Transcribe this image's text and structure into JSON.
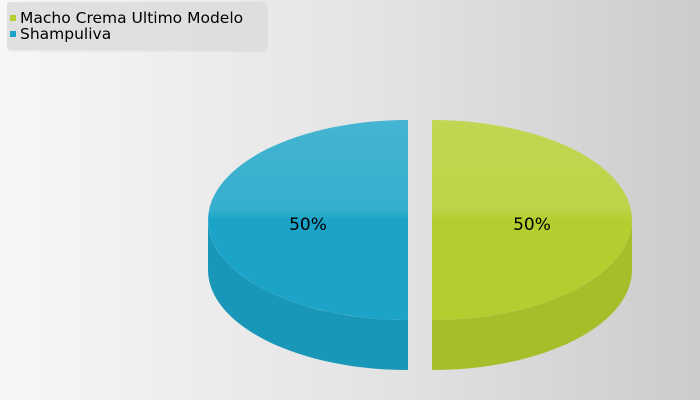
{
  "chart_data": {
    "type": "pie",
    "title": "",
    "categories": [
      "Macho Crema Ultimo Modelo",
      "Shampuliva"
    ],
    "values": [
      50,
      50
    ],
    "data_labels": [
      "50%",
      "50%"
    ],
    "colors": [
      "#b5cd2e",
      "#1ba4c8"
    ],
    "legend_position": "top-left",
    "style": "3d-exploded"
  }
}
